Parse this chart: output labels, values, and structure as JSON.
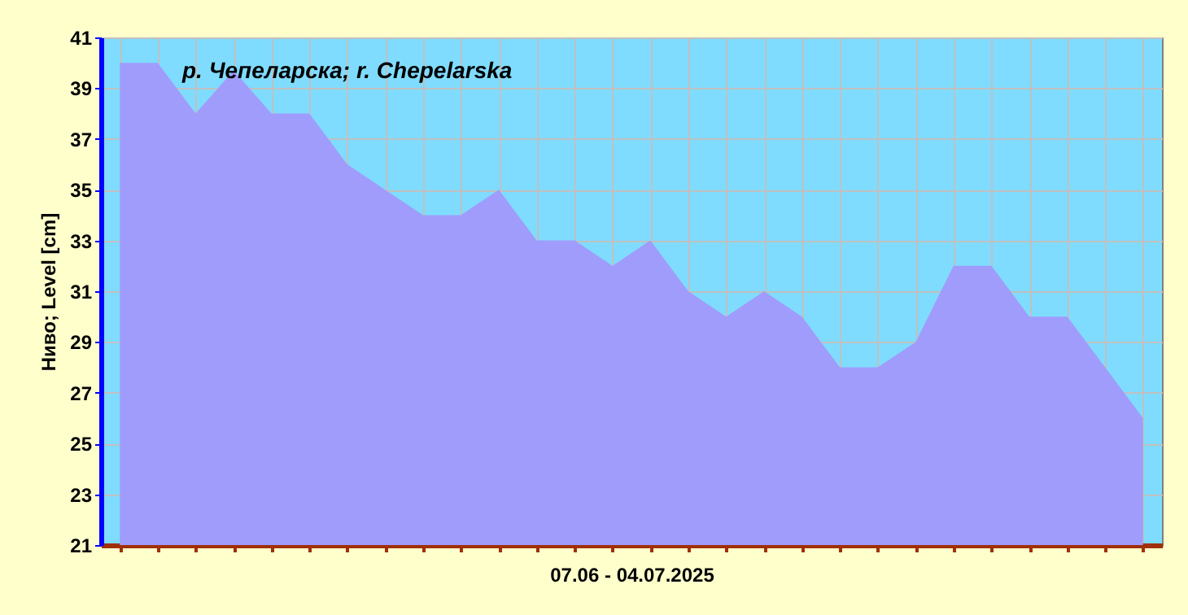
{
  "chart_data": {
    "type": "area",
    "title": "р. Чепеларска; r. Chepelarska",
    "xlabel": "07.06 - 04.07.2025",
    "ylabel": "Ниво; Level [cm]",
    "categories": [
      null,
      null,
      null,
      null,
      null,
      null,
      null,
      null,
      null,
      null,
      null,
      null,
      null,
      null,
      null,
      null,
      null,
      null,
      null,
      null,
      null,
      null,
      null,
      null,
      null,
      null,
      null,
      null
    ],
    "series": [
      {
        "color": "#a09cfc",
        "values": [
          40,
          40,
          38,
          39.7,
          38,
          38,
          36,
          35,
          34,
          34,
          35,
          33,
          33,
          32,
          33,
          31,
          30,
          31,
          30,
          28,
          28,
          29,
          32,
          32,
          30,
          30,
          28,
          26
        ]
      }
    ],
    "ylim": [
      21,
      41
    ],
    "yticks": [
      21,
      23,
      25,
      27,
      29,
      31,
      33,
      35,
      37,
      39,
      41
    ],
    "grid": true
  }
}
